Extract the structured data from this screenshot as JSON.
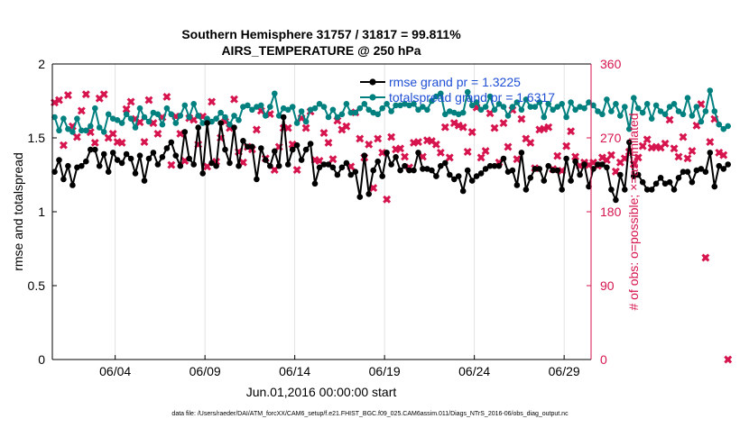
{
  "chart_data": {
    "type": "line",
    "title": "Southern Hemisphere 31757 / 31817 = 99.811%",
    "subtitle": "AIRS_TEMPERATURE @ 250 hPa",
    "xlabel": "Jun.01,2016 00:00:00 start",
    "ylabel_left": "rmse and totalspread",
    "ylabel_right": "# of obs: o=possible; ×=assimilated",
    "footnote": "data file: /Users/raeder/DAI/ATM_forcXX/CAM6_setup/f.e21.FHIST_BGC.f09_025.CAM6assim.011/Diags_NTrS_2016-06/obs_diag_output.nc",
    "x_tick_labels": [
      "06/04",
      "06/09",
      "06/14",
      "06/19",
      "06/24",
      "06/29"
    ],
    "x_tick_days": [
      3.5,
      8.5,
      13.5,
      18.5,
      23.5,
      28.5
    ],
    "xlim_days": [
      0,
      30
    ],
    "ylim_left": [
      0,
      2
    ],
    "y_ticks_left": [
      "0",
      "0.5",
      "1",
      "1.5",
      "2"
    ],
    "ylim_right": [
      0,
      360
    ],
    "y_ticks_right": [
      "0",
      "90",
      "180",
      "270",
      "360"
    ],
    "legend_position": "top-right",
    "colors": {
      "rmse": "#000000",
      "spread": "#00807f",
      "obs": "#d6154e",
      "right_axis": "#d6154e"
    },
    "series": [
      {
        "name": "rmse grand pr = 1.3225",
        "axis": "left",
        "step_days": 0.25,
        "start_day": 0.125,
        "values": [
          1.27,
          1.35,
          1.22,
          1.31,
          1.18,
          1.3,
          1.31,
          1.34,
          1.42,
          1.42,
          1.31,
          1.39,
          1.27,
          1.4,
          1.35,
          1.33,
          1.39,
          1.36,
          1.26,
          1.38,
          1.21,
          1.36,
          1.4,
          1.32,
          1.37,
          1.43,
          1.47,
          1.38,
          1.31,
          1.54,
          1.36,
          1.32,
          1.57,
          1.26,
          1.6,
          1.33,
          1.31,
          1.6,
          1.42,
          1.33,
          1.57,
          1.31,
          1.48,
          1.44,
          1.44,
          1.22,
          1.43,
          1.35,
          1.31,
          1.41,
          1.31,
          1.64,
          1.32,
          1.42,
          1.45,
          1.35,
          1.42,
          1.46,
          1.19,
          1.3,
          1.32,
          1.32,
          1.3,
          1.25,
          1.3,
          1.33,
          1.25,
          1.27,
          1.1,
          1.38,
          1.12,
          1.28,
          1.34,
          1.24,
          1.4,
          1.32,
          1.37,
          1.28,
          1.31,
          1.28,
          1.28,
          1.4,
          1.29,
          1.29,
          1.28,
          1.24,
          1.31,
          1.33,
          1.25,
          1.22,
          1.24,
          1.14,
          1.28,
          1.21,
          1.24,
          1.26,
          1.29,
          1.31,
          1.31,
          1.31,
          1.36,
          1.27,
          1.28,
          1.18,
          1.4,
          1.15,
          1.23,
          1.29,
          1.29,
          1.21,
          1.31,
          1.28,
          1.28,
          1.15,
          1.36,
          1.21,
          1.34,
          1.25,
          1.32,
          1.17,
          1.29,
          1.32,
          1.32,
          1.3,
          1.15,
          1.08,
          1.25,
          1.15,
          1.47,
          1.24,
          1.25,
          1.2,
          1.15,
          1.15,
          1.19,
          1.23,
          1.19,
          1.2,
          1.15,
          1.23,
          1.27,
          1.27,
          1.2,
          1.28,
          1.29,
          1.27,
          1.4,
          1.17,
          1.31,
          1.29,
          1.32
        ]
      },
      {
        "name": "totalspread grand pr = 1.6317",
        "axis": "left",
        "step_days": 0.25,
        "start_day": 0.125,
        "values": [
          1.64,
          1.55,
          1.63,
          1.56,
          1.54,
          1.63,
          1.55,
          1.55,
          1.58,
          1.7,
          1.57,
          1.54,
          1.66,
          1.63,
          1.62,
          1.6,
          1.66,
          1.63,
          1.57,
          1.7,
          1.64,
          1.61,
          1.67,
          1.66,
          1.59,
          1.7,
          1.66,
          1.6,
          1.65,
          1.72,
          1.64,
          1.73,
          1.65,
          1.6,
          1.63,
          1.61,
          1.63,
          1.67,
          1.64,
          1.59,
          1.65,
          1.62,
          1.71,
          1.72,
          1.69,
          1.71,
          1.72,
          1.65,
          1.71,
          1.8,
          1.65,
          1.7,
          1.69,
          1.71,
          1.6,
          1.68,
          1.61,
          1.69,
          1.7,
          1.73,
          1.71,
          1.64,
          1.69,
          1.64,
          1.66,
          1.73,
          1.67,
          1.67,
          1.7,
          1.73,
          1.69,
          1.67,
          1.66,
          1.7,
          1.73,
          1.68,
          1.72,
          1.72,
          1.73,
          1.72,
          1.73,
          1.69,
          1.71,
          1.69,
          1.75,
          1.78,
          1.8,
          1.66,
          1.68,
          1.67,
          1.66,
          1.67,
          1.81,
          1.72,
          1.74,
          1.69,
          1.71,
          1.78,
          1.69,
          1.73,
          1.71,
          1.65,
          1.71,
          1.74,
          1.69,
          1.76,
          1.71,
          1.71,
          1.74,
          1.64,
          1.73,
          1.69,
          1.71,
          1.73,
          1.64,
          1.74,
          1.69,
          1.71,
          1.7,
          1.74,
          1.72,
          1.68,
          1.66,
          1.76,
          1.68,
          1.73,
          1.65,
          1.71,
          1.56,
          1.77,
          1.7,
          1.67,
          1.73,
          1.63,
          1.72,
          1.68,
          1.66,
          1.71,
          1.73,
          1.68,
          1.66,
          1.77,
          1.65,
          1.71,
          1.61,
          1.68,
          1.82,
          1.68,
          1.59,
          1.56,
          1.58
        ]
      },
      {
        "name": "obs assimilated",
        "axis": "right",
        "marker": "x",
        "step_days": 0.25,
        "start_day": 0.125,
        "values": [
          313,
          316,
          261,
          322,
          284,
          271,
          303,
          323,
          277,
          264,
          318,
          323,
          270,
          275,
          265,
          264,
          305,
          314,
          293,
          289,
          265,
          316,
          288,
          275,
          295,
          320,
          237,
          296,
          275,
          242,
          294,
          292,
          262,
          296,
          235,
          314,
          241,
          270,
          290,
          282,
          317,
          253,
          240,
          259,
          256,
          280,
          303,
          245,
          299,
          231,
          259,
          282,
          282,
          262,
          231,
          294,
          282,
          302,
          243,
          242,
          276,
          264,
          244,
          291,
          280,
          284,
          235,
          301,
          269,
          246,
          262,
          209,
          269,
          252,
          195,
          271,
          256,
          257,
          247,
          234,
          264,
          265,
          247,
          267,
          266,
          262,
          252,
          283,
          246,
          288,
          285,
          283,
          253,
          277,
          307,
          246,
          254,
          300,
          282,
          240,
          288,
          259,
          304,
          244,
          293,
          269,
          264,
          233,
          280,
          281,
          283,
          232,
          248,
          230,
          260,
          278,
          247,
          236,
          240,
          237,
          240,
          236,
          246,
          243,
          249,
          229,
          240,
          245,
          253,
          238,
          246,
          260,
          268,
          258,
          259,
          258,
          263,
          292,
          257,
          247,
          271,
          245,
          254,
          285,
          311,
          124,
          265,
          293,
          252,
          249,
          0
        ]
      }
    ]
  }
}
